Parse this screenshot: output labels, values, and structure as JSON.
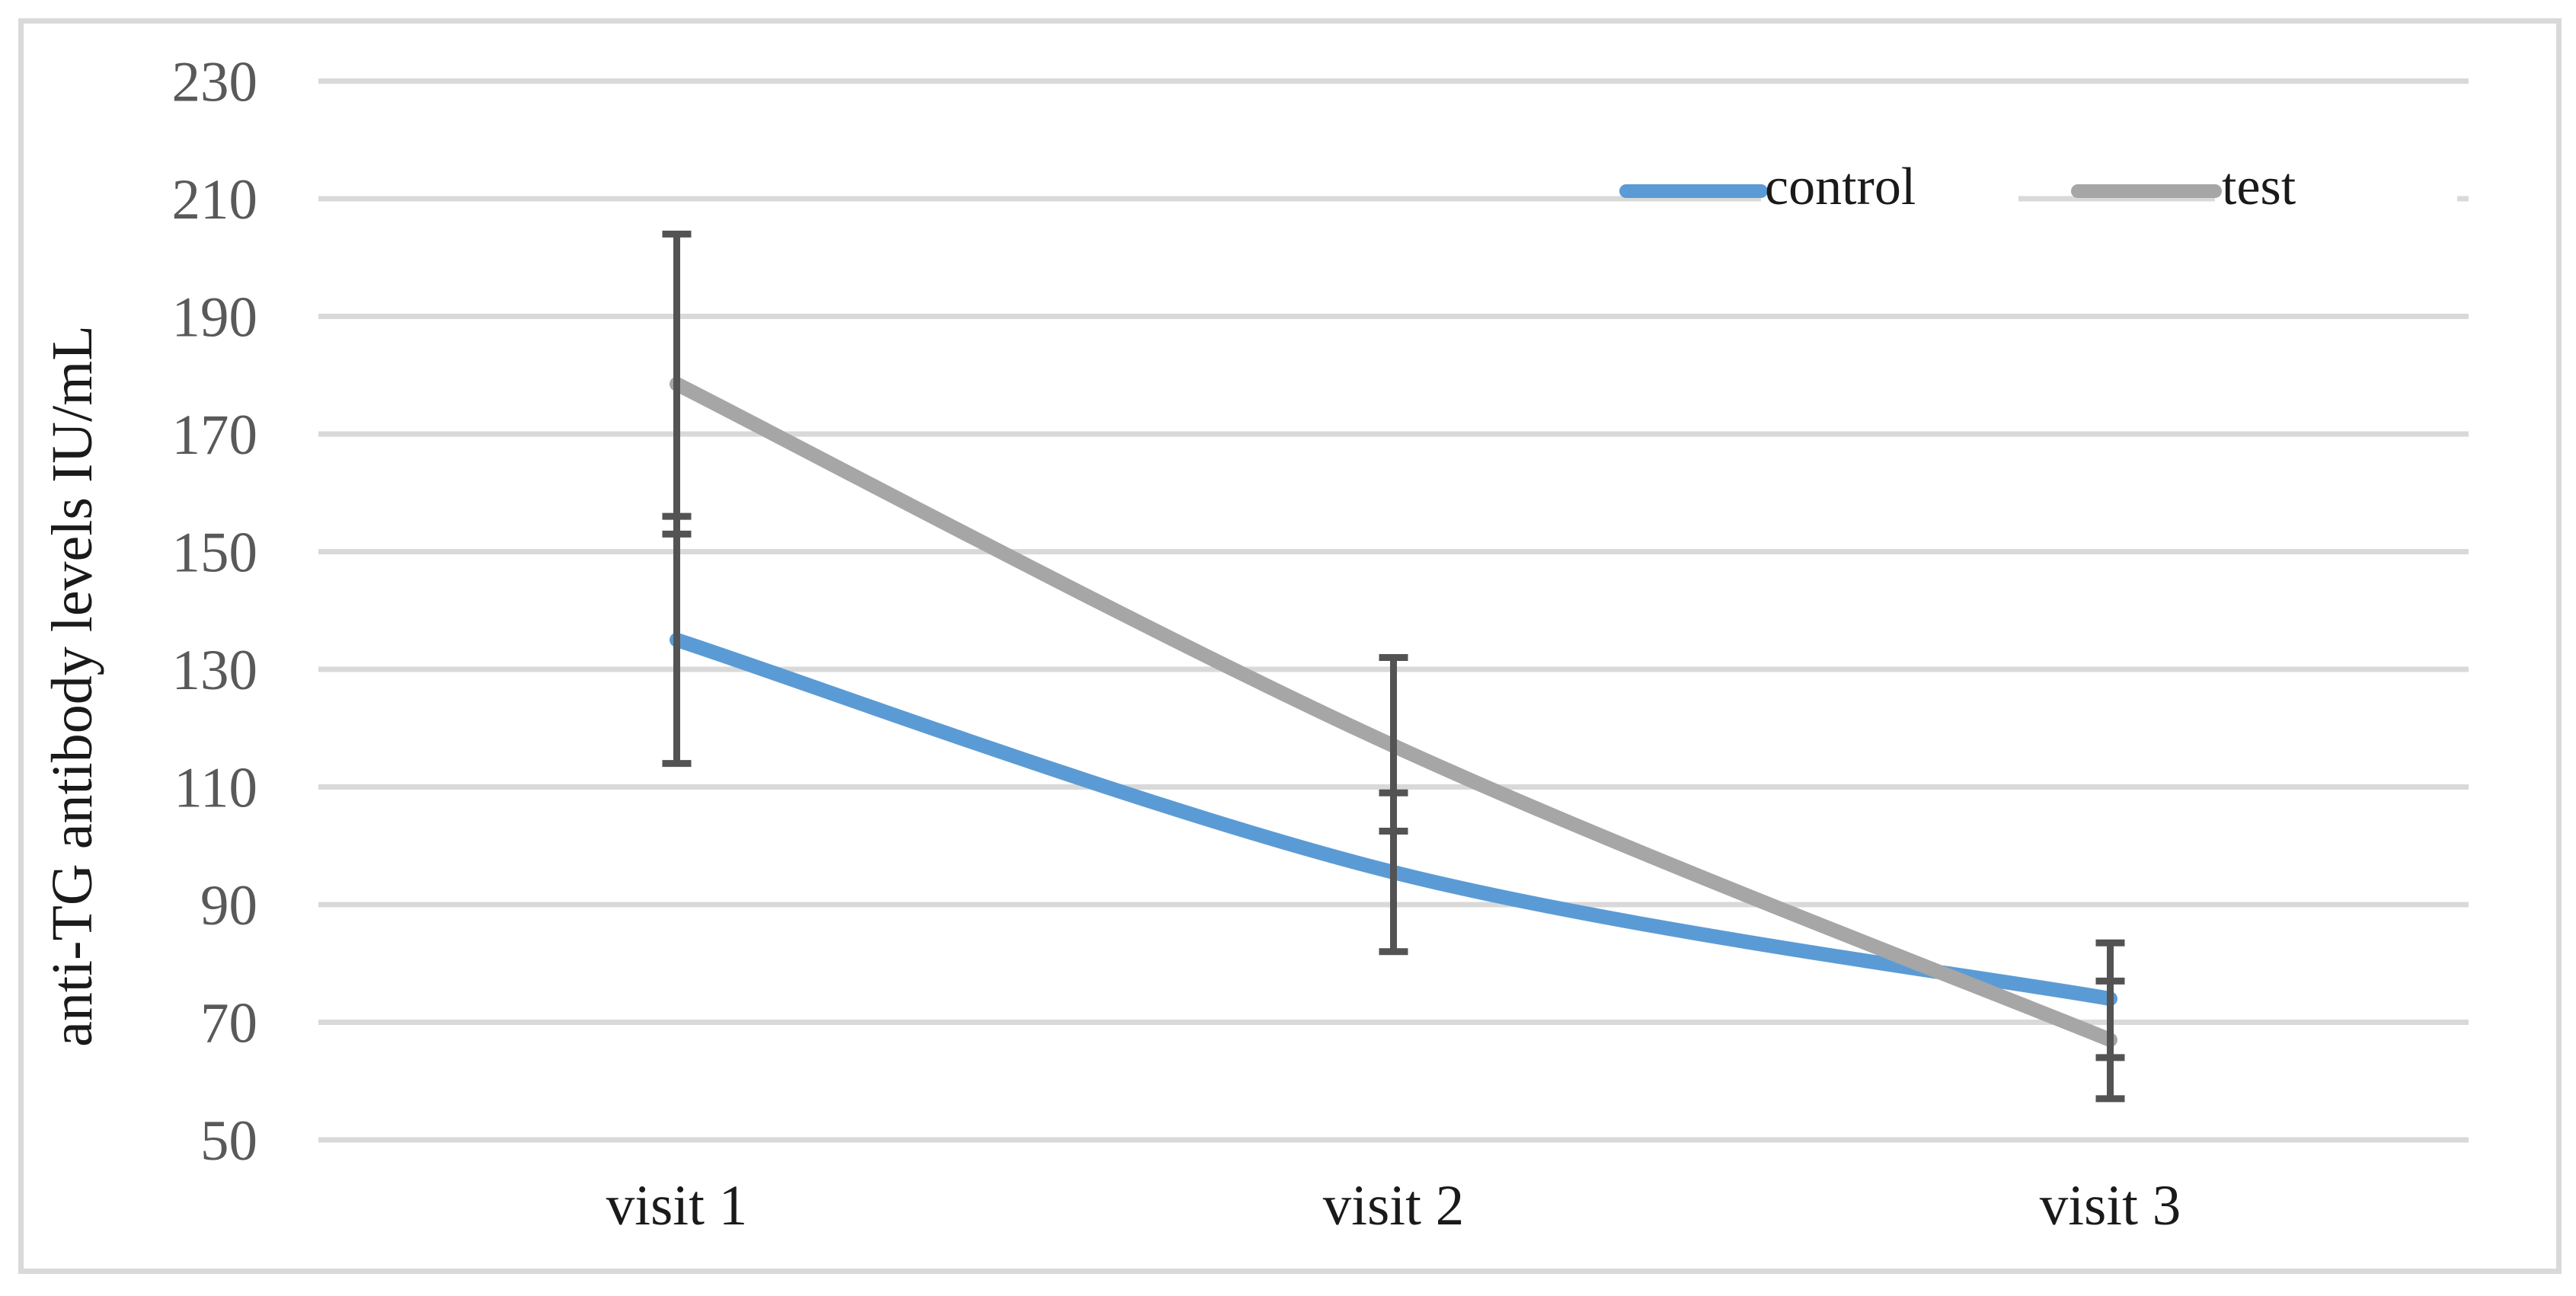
{
  "chart_data": {
    "type": "line",
    "title": "",
    "categories": [
      "visit 1",
      "visit 2",
      "visit 3"
    ],
    "xlabel": "",
    "ylabel": "anti-TG antibody levels IU/mL",
    "ylim": [
      50,
      230
    ],
    "yticks": [
      230,
      210,
      190,
      170,
      150,
      130,
      110,
      90,
      70,
      50
    ],
    "grid": "horizontal",
    "legend_position": "top-right-inside",
    "legend_labels": [
      "control",
      "test"
    ],
    "series": [
      {
        "name": "control",
        "color": "#5B9BD5",
        "values": [
          135,
          95.5,
          74
        ],
        "error_low": [
          114,
          82,
          64
        ],
        "error_high": [
          156,
          109,
          83.5
        ]
      },
      {
        "name": "test",
        "color": "#A6A6A6",
        "values": [
          178.5,
          117,
          67
        ],
        "error_low": [
          153,
          102.5,
          57
        ],
        "error_high": [
          204,
          132,
          77
        ]
      }
    ],
    "colors": {
      "gridline": "#D9D9D9",
      "figure_border": "#D9D9D9",
      "tick_label": "#595959",
      "axis_text": "#1a1a1a",
      "error_bar": "#535353",
      "background": "#ffffff"
    }
  }
}
